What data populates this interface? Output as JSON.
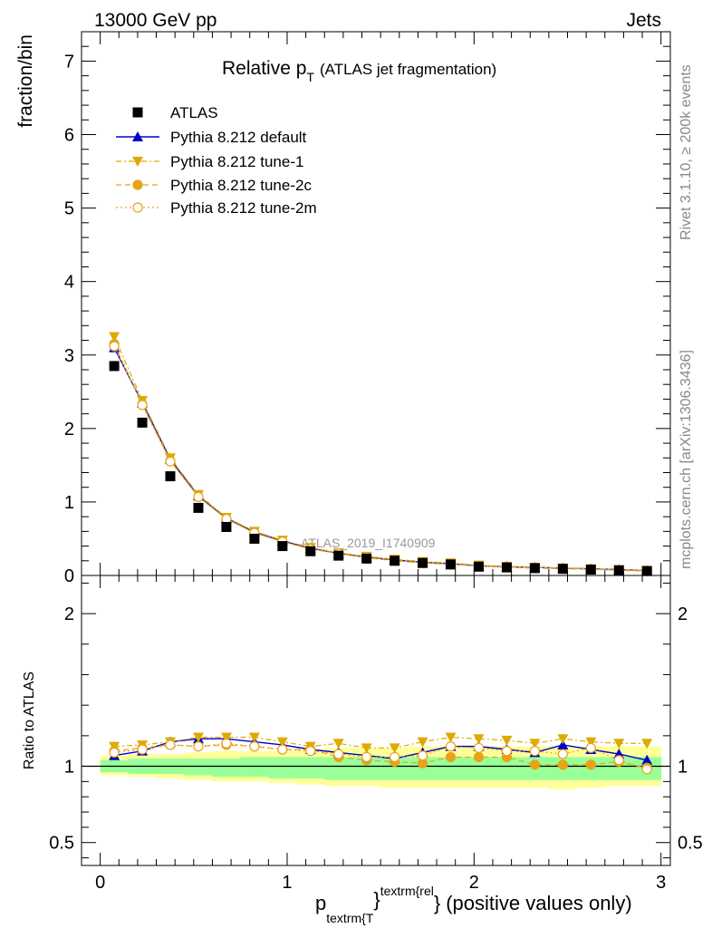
{
  "header": {
    "energy_label": "13000 GeV pp",
    "process_label": "Jets",
    "rivet_label": "Rivet 3.1.10, ≥ 200k events",
    "mcplots_label": "mcplots.cern.ch [arXiv:1306.3436]",
    "analysis_id": "ATLAS_2019_I1740909"
  },
  "chart_data": {
    "type": "scatter",
    "title": "Relative p_T (ATLAS jet fragmentation)",
    "title_main": "Relative p",
    "title_sub": "T",
    "title_rest": "(ATLAS jet fragmentation)",
    "ylabel": "fraction/bin",
    "ratio_ylabel": "Ratio to ATLAS",
    "xlabel_p": "p",
    "xlabel_sub": "textrm{T",
    "xlabel_sup": "textrm{rel",
    "xlabel_brace1": "}",
    "xlabel_brace2": "}",
    "xlabel_rest": "(positive values only)",
    "xlim": [
      -0.1,
      3.05
    ],
    "ylim": [
      0,
      7.4
    ],
    "ratio_ylim": [
      0.35,
      2.25
    ],
    "x_ticks": [
      0,
      1,
      2,
      3
    ],
    "x_tick_labels": [
      "0",
      "1",
      "2",
      "3"
    ],
    "y_ticks": [
      0,
      1,
      2,
      3,
      4,
      5,
      6,
      7
    ],
    "y_tick_labels": [
      "0",
      "1",
      "2",
      "3",
      "4",
      "5",
      "6",
      "7"
    ],
    "ratio_ticks": [
      0.5,
      1,
      2
    ],
    "ratio_tick_labels": [
      "0.5",
      "1",
      "2"
    ],
    "legend_position": "top-left",
    "x": [
      0.075,
      0.225,
      0.375,
      0.525,
      0.675,
      0.825,
      0.975,
      1.125,
      1.275,
      1.425,
      1.575,
      1.725,
      1.875,
      2.025,
      2.175,
      2.325,
      2.475,
      2.625,
      2.775,
      2.925
    ],
    "series": [
      {
        "name": "ATLAS",
        "color": "#000000",
        "values": [
          2.85,
          2.08,
          1.35,
          0.92,
          0.66,
          0.5,
          0.4,
          0.33,
          0.27,
          0.23,
          0.2,
          0.17,
          0.15,
          0.12,
          0.11,
          0.1,
          0.09,
          0.08,
          0.07,
          0.06
        ]
      },
      {
        "name": "Pythia 8.212 default",
        "color": "#0000cc",
        "values": [
          3.1,
          2.35,
          1.58,
          1.08,
          0.78,
          0.59,
          0.47,
          0.37,
          0.3,
          0.25,
          0.21,
          0.18,
          0.16,
          0.13,
          0.12,
          0.11,
          0.1,
          0.09,
          0.08,
          0.065
        ],
        "ratio": [
          1.07,
          1.1,
          1.16,
          1.18,
          1.18,
          1.16,
          1.14,
          1.11,
          1.09,
          1.07,
          1.05,
          1.09,
          1.13,
          1.13,
          1.11,
          1.09,
          1.14,
          1.11,
          1.08,
          1.04
        ]
      },
      {
        "name": "Pythia 8.212 tune-1",
        "color": "#ddaa00",
        "values": [
          3.25,
          2.38,
          1.6,
          1.1,
          0.79,
          0.6,
          0.48,
          0.38,
          0.31,
          0.26,
          0.22,
          0.19,
          0.17,
          0.14,
          0.12,
          0.11,
          0.1,
          0.09,
          0.08,
          0.07
        ],
        "ratio": [
          1.13,
          1.14,
          1.16,
          1.19,
          1.19,
          1.19,
          1.16,
          1.13,
          1.15,
          1.12,
          1.12,
          1.16,
          1.19,
          1.18,
          1.17,
          1.15,
          1.18,
          1.16,
          1.15,
          1.15
        ]
      },
      {
        "name": "Pythia 8.212 tune-2c",
        "color": "#e8a317",
        "values": [
          3.15,
          2.33,
          1.56,
          1.07,
          0.77,
          0.58,
          0.46,
          0.36,
          0.3,
          0.24,
          0.2,
          0.17,
          0.15,
          0.13,
          0.11,
          0.1,
          0.09,
          0.085,
          0.07,
          0.06
        ],
        "ratio": [
          1.1,
          1.12,
          1.14,
          1.13,
          1.14,
          1.13,
          1.11,
          1.11,
          1.06,
          1.04,
          1.03,
          1.02,
          1.06,
          1.06,
          1.06,
          1.01,
          1.01,
          1.01,
          1.03,
          0.99
        ]
      },
      {
        "name": "Pythia 8.212 tune-2m",
        "color": "#e8a317",
        "values": [
          3.12,
          2.32,
          1.55,
          1.07,
          0.77,
          0.58,
          0.46,
          0.36,
          0.3,
          0.25,
          0.21,
          0.18,
          0.16,
          0.13,
          0.12,
          0.11,
          0.1,
          0.09,
          0.075,
          0.06
        ],
        "ratio": [
          1.09,
          1.11,
          1.14,
          1.13,
          1.15,
          1.13,
          1.11,
          1.1,
          1.08,
          1.06,
          1.06,
          1.07,
          1.13,
          1.12,
          1.1,
          1.1,
          1.08,
          1.12,
          1.04,
          0.98
        ]
      }
    ],
    "ratio_band_stat": {
      "lo": [
        0.96,
        0.95,
        0.95,
        0.94,
        0.93,
        0.93,
        0.92,
        0.92,
        0.91,
        0.91,
        0.91,
        0.91,
        0.91,
        0.91,
        0.91,
        0.91,
        0.91,
        0.91,
        0.91,
        0.91
      ],
      "hi": [
        1.04,
        1.05,
        1.05,
        1.05,
        1.05,
        1.06,
        1.06,
        1.06,
        1.06,
        1.06,
        1.06,
        1.06,
        1.06,
        1.06,
        1.06,
        1.06,
        1.06,
        1.06,
        1.06,
        1.06
      ]
    },
    "ratio_band_total": {
      "lo": [
        0.94,
        0.93,
        0.92,
        0.91,
        0.9,
        0.9,
        0.89,
        0.88,
        0.87,
        0.87,
        0.86,
        0.86,
        0.86,
        0.86,
        0.86,
        0.86,
        0.85,
        0.86,
        0.87,
        0.87
      ],
      "hi": [
        1.07,
        1.08,
        1.08,
        1.09,
        1.1,
        1.1,
        1.1,
        1.11,
        1.12,
        1.12,
        1.12,
        1.13,
        1.13,
        1.13,
        1.13,
        1.13,
        1.13,
        1.13,
        1.13,
        1.13
      ]
    }
  }
}
